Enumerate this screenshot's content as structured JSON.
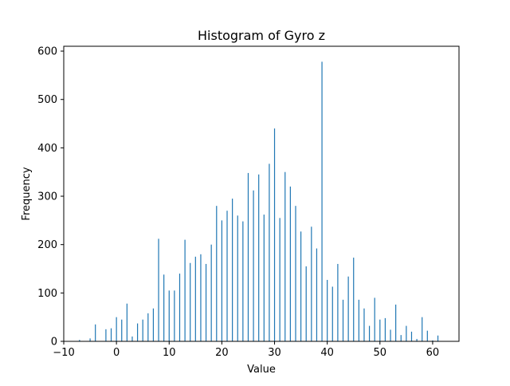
{
  "chart_data": {
    "type": "bar",
    "title": "Histogram of Gyro z",
    "xlabel": "Value",
    "ylabel": "Frequency",
    "xlim": [
      -10,
      65
    ],
    "ylim": [
      0,
      610
    ],
    "xticks": [
      -10,
      0,
      10,
      20,
      30,
      40,
      50,
      60
    ],
    "yticks": [
      0,
      100,
      200,
      300,
      400,
      500,
      600
    ],
    "grid": false,
    "color": "#1f77b4",
    "x": [
      -7,
      -5,
      -4,
      -2,
      -1,
      0,
      1,
      2,
      3,
      4,
      5,
      6,
      7,
      8,
      9,
      10,
      11,
      12,
      13,
      14,
      15,
      16,
      17,
      18,
      19,
      20,
      21,
      22,
      23,
      24,
      25,
      26,
      27,
      28,
      29,
      30,
      31,
      32,
      33,
      34,
      35,
      36,
      37,
      38,
      39,
      40,
      41,
      42,
      43,
      44,
      45,
      46,
      47,
      48,
      49,
      50,
      51,
      52,
      53,
      54,
      55,
      56,
      57,
      58,
      59,
      60,
      61
    ],
    "values": [
      3,
      6,
      35,
      25,
      27,
      50,
      45,
      78,
      10,
      37,
      45,
      58,
      68,
      212,
      138,
      105,
      105,
      140,
      210,
      162,
      175,
      180,
      160,
      200,
      280,
      250,
      270,
      295,
      260,
      248,
      348,
      312,
      345,
      262,
      367,
      440,
      255,
      350,
      320,
      280,
      227,
      155,
      237,
      192,
      578,
      127,
      113,
      160,
      86,
      134,
      173,
      86,
      68,
      32,
      90,
      45,
      48,
      24,
      76,
      13,
      32,
      20,
      5,
      50,
      22,
      2,
      12
    ]
  }
}
